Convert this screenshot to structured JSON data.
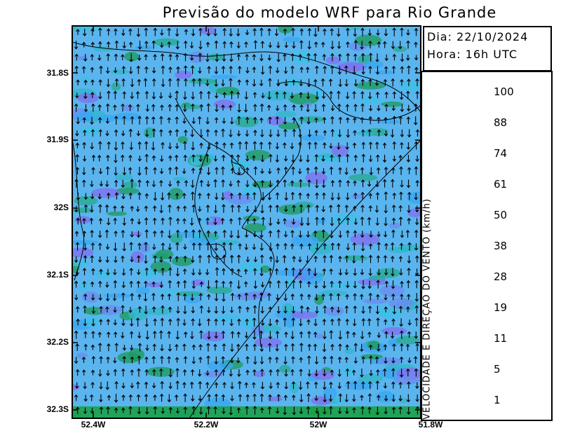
{
  "title": "Previsão do modelo WRF para Rio Grande",
  "info": {
    "dia": "Dia: 22/10/2024",
    "hora": "Hora: 16h UTC"
  },
  "lat_labels": [
    "31.8S",
    "31.9S",
    "32S",
    "32.1S",
    "32.2S",
    "32.3S"
  ],
  "lon_labels": [
    "52.4W",
    "52.2W",
    "52W",
    "51.8W"
  ],
  "legend": {
    "title": "VELOCIDADE E DIREÇÃO DO VENTO (km/h)",
    "labels": [
      "100",
      "88",
      "74",
      "61",
      "50",
      "38",
      "28",
      "19",
      "11",
      "5",
      "1"
    ],
    "colors": [
      "#6a36e6",
      "#5b7de8",
      "#38a6f0",
      "#16b4c8",
      "#0f8c66",
      "#0d6e0d",
      "#138b13",
      "#1fb01f",
      "#3cd23c",
      "#95df1a",
      "#c8ee10",
      "#fff200",
      "#ffd400",
      "#ffa800",
      "#ff7c00",
      "#ff4b00",
      "#ff1a00",
      "#d60000",
      "#aa0010",
      "#93003a",
      "#be007a",
      "#d515aa"
    ],
    "top_color": "#dc18bb",
    "bottom_color": "#a060f0"
  }
}
